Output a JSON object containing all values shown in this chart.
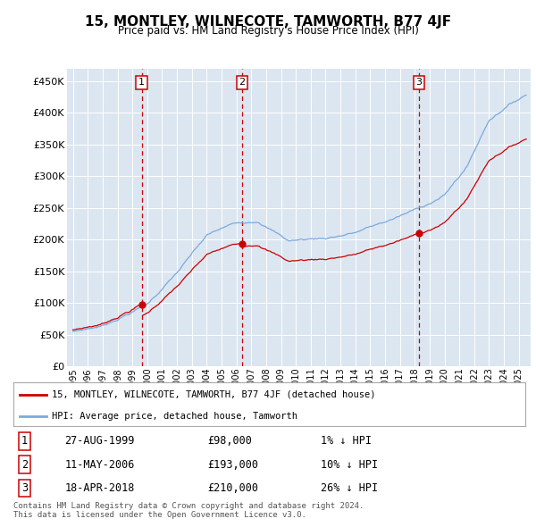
{
  "title": "15, MONTLEY, WILNECOTE, TAMWORTH, B77 4JF",
  "subtitle": "Price paid vs. HM Land Registry's House Price Index (HPI)",
  "ylim": [
    0,
    470000
  ],
  "yticks": [
    0,
    50000,
    100000,
    150000,
    200000,
    250000,
    300000,
    350000,
    400000,
    450000
  ],
  "hpi_color": "#7aaadd",
  "price_color": "#cc0000",
  "background_color": "#dce6f1",
  "legend_label_red": "15, MONTLEY, WILNECOTE, TAMWORTH, B77 4JF (detached house)",
  "legend_label_blue": "HPI: Average price, detached house, Tamworth",
  "sale_labels": [
    "1",
    "2",
    "3"
  ],
  "sale_dates": [
    "27-AUG-1999",
    "11-MAY-2006",
    "18-APR-2018"
  ],
  "sale_prices": [
    "£98,000",
    "£193,000",
    "£210,000"
  ],
  "sale_hpi_pct": [
    "1% ↓ HPI",
    "10% ↓ HPI",
    "26% ↓ HPI"
  ],
  "footer": "Contains HM Land Registry data © Crown copyright and database right 2024.\nThis data is licensed under the Open Government Licence v3.0.",
  "start_year": 1995,
  "end_year": 2025,
  "s1_price": 98000,
  "s2_price": 193000,
  "s3_price": 210000,
  "s1_t": 1999.625,
  "s2_t": 2006.375,
  "s3_t": 2018.292
}
